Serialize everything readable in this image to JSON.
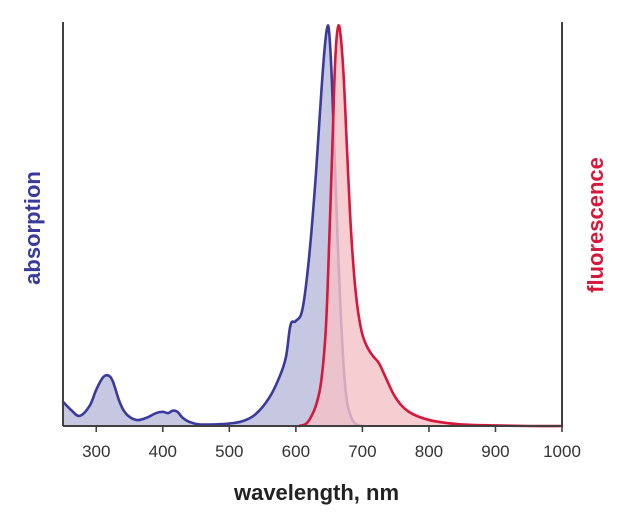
{
  "chart_data": {
    "type": "area",
    "xlabel": "wavelength, nm",
    "ylabel_left": "absorption",
    "ylabel_right": "fluorescence",
    "xlim": [
      250,
      1000
    ],
    "ylim": [
      0,
      1
    ],
    "xticks": [
      300,
      400,
      500,
      600,
      700,
      800,
      900,
      1000
    ],
    "grid": false,
    "y_tick_labels": false,
    "series": [
      {
        "name": "absorption",
        "color": "#3a3a9c",
        "fill": "#c6c8e2",
        "points": [
          [
            250,
            0.06
          ],
          [
            262,
            0.04
          ],
          [
            275,
            0.025
          ],
          [
            290,
            0.05
          ],
          [
            300,
            0.09
          ],
          [
            310,
            0.12
          ],
          [
            318,
            0.125
          ],
          [
            325,
            0.11
          ],
          [
            335,
            0.06
          ],
          [
            345,
            0.03
          ],
          [
            360,
            0.015
          ],
          [
            375,
            0.02
          ],
          [
            390,
            0.032
          ],
          [
            400,
            0.035
          ],
          [
            408,
            0.032
          ],
          [
            415,
            0.038
          ],
          [
            422,
            0.035
          ],
          [
            430,
            0.02
          ],
          [
            440,
            0.01
          ],
          [
            455,
            0.004
          ],
          [
            480,
            0.004
          ],
          [
            500,
            0.006
          ],
          [
            520,
            0.012
          ],
          [
            540,
            0.03
          ],
          [
            560,
            0.07
          ],
          [
            575,
            0.12
          ],
          [
            585,
            0.17
          ],
          [
            592,
            0.25
          ],
          [
            600,
            0.26
          ],
          [
            610,
            0.29
          ],
          [
            620,
            0.42
          ],
          [
            630,
            0.62
          ],
          [
            638,
            0.82
          ],
          [
            643,
            0.93
          ],
          [
            647,
            0.985
          ],
          [
            650,
            0.975
          ],
          [
            654,
            0.86
          ],
          [
            658,
            0.68
          ],
          [
            663,
            0.45
          ],
          [
            668,
            0.26
          ],
          [
            673,
            0.12
          ],
          [
            678,
            0.05
          ],
          [
            685,
            0.015
          ],
          [
            692,
            0.003
          ],
          [
            700,
            0.0
          ]
        ]
      },
      {
        "name": "fluorescence",
        "color": "#d5183c",
        "fill": "#f4c2c7",
        "points": [
          [
            605,
            0.0
          ],
          [
            615,
            0.005
          ],
          [
            622,
            0.02
          ],
          [
            630,
            0.05
          ],
          [
            638,
            0.11
          ],
          [
            645,
            0.24
          ],
          [
            650,
            0.45
          ],
          [
            655,
            0.7
          ],
          [
            659,
            0.9
          ],
          [
            663,
            0.985
          ],
          [
            667,
            0.97
          ],
          [
            672,
            0.86
          ],
          [
            677,
            0.68
          ],
          [
            683,
            0.48
          ],
          [
            690,
            0.33
          ],
          [
            698,
            0.24
          ],
          [
            706,
            0.2
          ],
          [
            715,
            0.175
          ],
          [
            725,
            0.155
          ],
          [
            735,
            0.12
          ],
          [
            750,
            0.07
          ],
          [
            770,
            0.035
          ],
          [
            800,
            0.015
          ],
          [
            840,
            0.005
          ],
          [
            880,
            0.002
          ],
          [
            950,
            0.0
          ],
          [
            1000,
            0.0
          ]
        ]
      }
    ]
  },
  "colors": {
    "axis": "#404040",
    "absorption_label": "#3a3a9c",
    "fluorescence_label": "#d5183c"
  }
}
